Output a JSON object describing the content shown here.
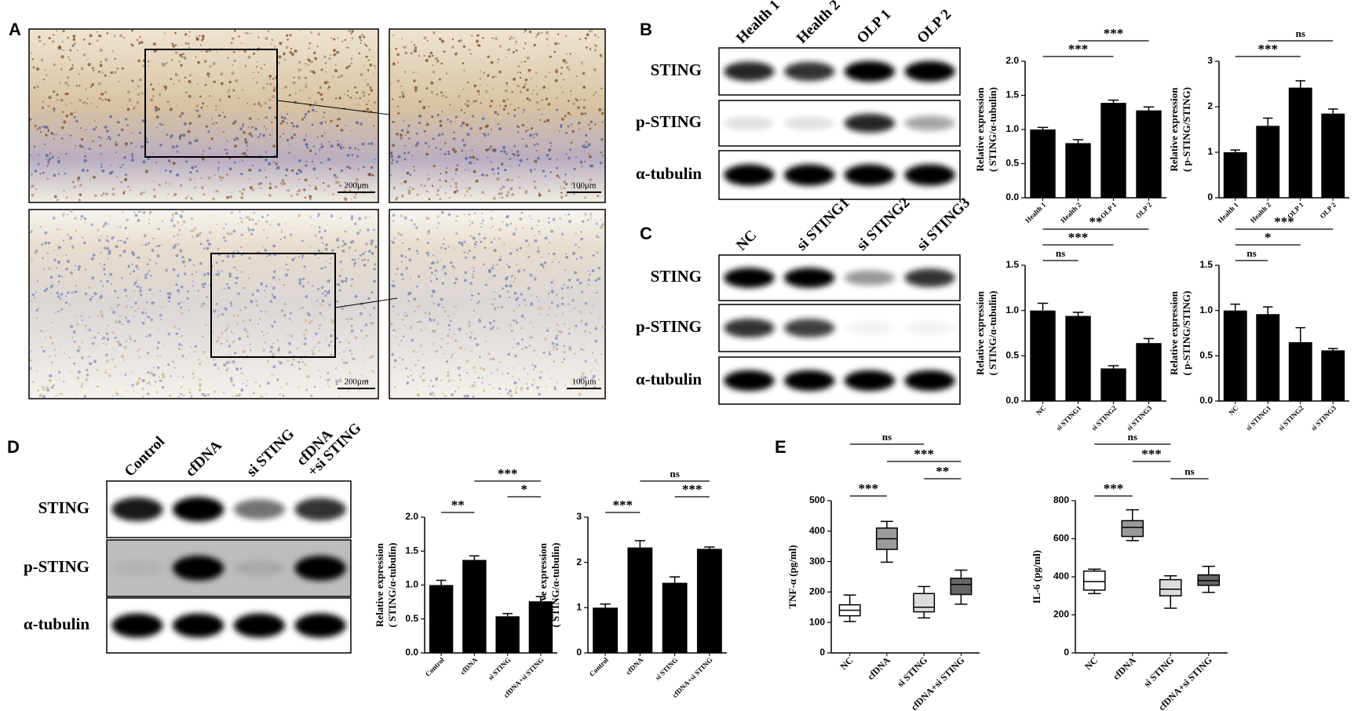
{
  "figure": {
    "panel_labels": [
      "A",
      "B",
      "C",
      "D",
      "E"
    ],
    "scale_bars": [
      "200μm",
      "100μm",
      "200μm",
      "100μm"
    ],
    "blots": [
      {
        "lanes": [
          "Health 1",
          "Health 2",
          "OLP 1",
          "OLP 2"
        ],
        "rows": [
          "STING",
          "p-STING",
          "α-tubulin"
        ]
      },
      {
        "lanes": [
          "NC",
          "si STING1",
          "si STING2",
          "si STING3"
        ],
        "rows": [
          "STING",
          "p-STING",
          "α-tubulin"
        ]
      },
      {
        "lanes": [
          "Control",
          "cfDNA",
          "si STING",
          [
            "cfDNA",
            "+si STING"
          ]
        ],
        "rows": [
          "STING",
          "p-STING",
          "α-tubulin"
        ]
      }
    ]
  },
  "chart_data": [
    {
      "type": "bar",
      "ylabel": [
        "Relative expression",
        "( STING/α-tubulin)"
      ],
      "categories": [
        "Health 1",
        "Health 2",
        "OLP 1",
        "OLP 2"
      ],
      "values": [
        1.0,
        0.8,
        1.39,
        1.28
      ],
      "errors": [
        0.03,
        0.05,
        0.04,
        0.05
      ],
      "color": "#000000",
      "ylim": [
        0,
        2
      ],
      "yticks": [
        {
          "value": 0,
          "label": "0.0"
        },
        0.5,
        {
          "value": 1,
          "label": "1.0"
        },
        1.5,
        {
          "value": 2,
          "label": "2.0"
        }
      ],
      "annotations": [
        {
          "text": "***",
          "span": [
            0,
            2
          ]
        },
        {
          "text": "***",
          "span": [
            1,
            3
          ]
        }
      ]
    },
    {
      "type": "bar",
      "ylabel": [
        "Relative expression",
        "( p-STING/STING)"
      ],
      "categories": [
        "Health 1",
        "Health 2",
        "OLP 1",
        "OLP 2"
      ],
      "values": [
        1.0,
        1.58,
        2.42,
        1.85
      ],
      "errors": [
        0.05,
        0.17,
        0.15,
        0.1
      ],
      "color": "#000000",
      "ylim": [
        0,
        3
      ],
      "yticks": [
        0,
        1,
        2,
        3
      ],
      "annotations": [
        {
          "text": "***",
          "span": [
            0,
            2
          ]
        },
        {
          "text": "ns",
          "span": [
            1,
            3
          ]
        }
      ]
    },
    {
      "type": "bar",
      "ylabel": [
        "Relative expression",
        "( STING/α-tubulin)"
      ],
      "categories": [
        "NC",
        "si STING1",
        "si STING2",
        "si STING3"
      ],
      "values": [
        1.0,
        0.94,
        0.36,
        0.64
      ],
      "errors": [
        0.08,
        0.04,
        0.03,
        0.05
      ],
      "color": "#000000",
      "ylim": [
        0,
        1.5
      ],
      "yticks": [
        {
          "value": 0,
          "label": "0.0"
        },
        0.5,
        {
          "value": 1,
          "label": "1.0"
        },
        1.5
      ],
      "annotations": [
        {
          "text": "ns",
          "span": [
            0,
            1
          ]
        },
        {
          "text": "***",
          "span": [
            0,
            2
          ]
        },
        {
          "text": "**",
          "span": [
            0,
            3
          ]
        }
      ]
    },
    {
      "type": "bar",
      "ylabel": [
        "Relative expression",
        "( p-STING/STING)"
      ],
      "categories": [
        "NC",
        "si STING1",
        "si STING2",
        "si STING3"
      ],
      "values": [
        1.0,
        0.96,
        0.65,
        0.56
      ],
      "errors": [
        0.07,
        0.08,
        0.16,
        0.02
      ],
      "color": "#000000",
      "ylim": [
        0,
        1.5
      ],
      "yticks": [
        {
          "value": 0,
          "label": "0.0"
        },
        0.5,
        {
          "value": 1,
          "label": "1.0"
        },
        1.5
      ],
      "annotations": [
        {
          "text": "ns",
          "span": [
            0,
            1
          ]
        },
        {
          "text": "*",
          "span": [
            0,
            2
          ]
        },
        {
          "text": "***",
          "span": [
            0,
            3
          ]
        }
      ]
    },
    {
      "type": "bar",
      "ylabel": [
        "Relative expression",
        "( STING/α-tubulin)"
      ],
      "categories": [
        "Control",
        "cfDNA",
        "si STING",
        "cfDNA+si STING"
      ],
      "values": [
        1.0,
        1.37,
        0.54,
        0.76
      ],
      "errors": [
        0.07,
        0.06,
        0.04,
        0.07
      ],
      "color": "#000000",
      "ylim": [
        0,
        2
      ],
      "yticks": [
        {
          "value": 0,
          "label": "0.0"
        },
        0.5,
        {
          "value": 1,
          "label": "1.0"
        },
        1.5,
        {
          "value": 2,
          "label": "2.0"
        }
      ],
      "annotations": [
        {
          "text": "**",
          "span": [
            0,
            1
          ]
        },
        {
          "text": "*",
          "span": [
            2,
            3
          ]
        },
        {
          "text": "***",
          "span": [
            1,
            3
          ]
        }
      ]
    },
    {
      "type": "bar",
      "ylabel": [
        "Relative expression",
        "( STING/α-tubulin)"
      ],
      "categories": [
        "Control",
        "cfDNA",
        "si STING",
        "cfDNA+si STING"
      ],
      "values": [
        1.0,
        2.33,
        1.55,
        2.3
      ],
      "errors": [
        0.08,
        0.15,
        0.13,
        0.04
      ],
      "color": "#000000",
      "ylim": [
        0,
        3
      ],
      "yticks": [
        0,
        1,
        2,
        3
      ],
      "annotations": [
        {
          "text": "***",
          "span": [
            0,
            1
          ]
        },
        {
          "text": "***",
          "span": [
            2,
            3
          ]
        },
        {
          "text": "ns",
          "span": [
            1,
            3
          ]
        }
      ]
    },
    {
      "type": "box",
      "ylabel": [
        "TNF-α (pg/ml)"
      ],
      "categories": [
        "NC",
        "cfDNA",
        "si STING",
        "cfDNA+si STING"
      ],
      "boxes": [
        {
          "min": 103,
          "q1": 122,
          "median": 140,
          "q3": 158,
          "max": 190
        },
        {
          "min": 298,
          "q1": 340,
          "median": 375,
          "q3": 410,
          "max": 432
        },
        {
          "min": 115,
          "q1": 135,
          "median": 150,
          "q3": 195,
          "max": 218
        },
        {
          "min": 160,
          "q1": 192,
          "median": 225,
          "q3": 245,
          "max": 272
        }
      ],
      "colors": [
        "#ffffff",
        "#9a9a9a",
        "#dcdcdc",
        "#666666"
      ],
      "ylim": [
        0,
        500
      ],
      "yticks": [
        0,
        100,
        200,
        300,
        400,
        500
      ],
      "annotations": [
        {
          "text": "***",
          "span": [
            0,
            1
          ]
        },
        {
          "text": "**",
          "span": [
            2,
            3
          ]
        },
        {
          "text": "***",
          "span": [
            1,
            3
          ]
        },
        {
          "text": "ns",
          "span": [
            0,
            2
          ]
        }
      ]
    },
    {
      "type": "box",
      "ylabel": [
        "IL-6 (pg/ml)"
      ],
      "categories": [
        "NC",
        "cfDNA",
        "si STING",
        "cfDNA+si STING"
      ],
      "boxes": [
        {
          "min": 312,
          "q1": 330,
          "median": 375,
          "q3": 430,
          "max": 440
        },
        {
          "min": 590,
          "q1": 612,
          "median": 660,
          "q3": 695,
          "max": 752
        },
        {
          "min": 235,
          "q1": 300,
          "median": 335,
          "q3": 385,
          "max": 405
        },
        {
          "min": 318,
          "q1": 355,
          "median": 380,
          "q3": 410,
          "max": 455
        }
      ],
      "colors": [
        "#ffffff",
        "#9a9a9a",
        "#dcdcdc",
        "#666666"
      ],
      "ylim": [
        0,
        800
      ],
      "yticks": [
        0,
        200,
        400,
        600,
        800
      ],
      "annotations": [
        {
          "text": "***",
          "span": [
            0,
            1
          ]
        },
        {
          "text": "ns",
          "span": [
            2,
            3
          ]
        },
        {
          "text": "***",
          "span": [
            1,
            2
          ]
        },
        {
          "text": "ns",
          "span": [
            0,
            2
          ]
        }
      ]
    }
  ]
}
